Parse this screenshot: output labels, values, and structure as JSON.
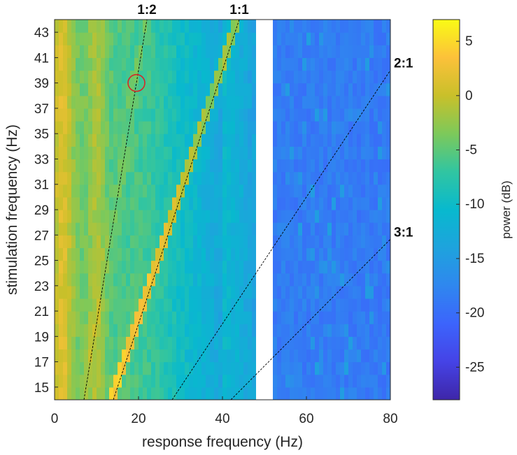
{
  "chart_data": {
    "type": "heatmap",
    "xlabel": "response frequency (Hz)",
    "ylabel": "stimulation frequency (Hz)",
    "xlim": [
      0,
      80
    ],
    "ylim": [
      14,
      44
    ],
    "x_ticks": [
      0,
      20,
      40,
      60,
      80
    ],
    "y_ticks": [
      15,
      17,
      19,
      21,
      23,
      25,
      27,
      29,
      31,
      33,
      35,
      37,
      39,
      41,
      43
    ],
    "y_rows": [
      14,
      15,
      16,
      17,
      18,
      19,
      20,
      21,
      22,
      23,
      24,
      25,
      26,
      27,
      28,
      29,
      30,
      31,
      32,
      33,
      34,
      35,
      36,
      37,
      38,
      39,
      40,
      41,
      42,
      43
    ],
    "notch_band": [
      48,
      52
    ],
    "colorbar": {
      "label": "power (dB)",
      "ticks": [
        5,
        0,
        -5,
        -10,
        -15,
        -20,
        -25
      ],
      "range": [
        -28,
        7
      ],
      "colormap": "parula"
    },
    "ratio_lines": [
      {
        "label": "1:2",
        "slope": 0.5
      },
      {
        "label": "1:1",
        "slope": 1
      },
      {
        "label": "2:1",
        "slope": 2
      },
      {
        "label": "3:1",
        "slope": 3
      }
    ],
    "marker": {
      "x": 19.5,
      "y": 39,
      "shape": "circle",
      "color": "#d62728"
    },
    "colors": {
      "line": "#000000",
      "marker": "#d62728",
      "notch": "#ffffff"
    }
  }
}
